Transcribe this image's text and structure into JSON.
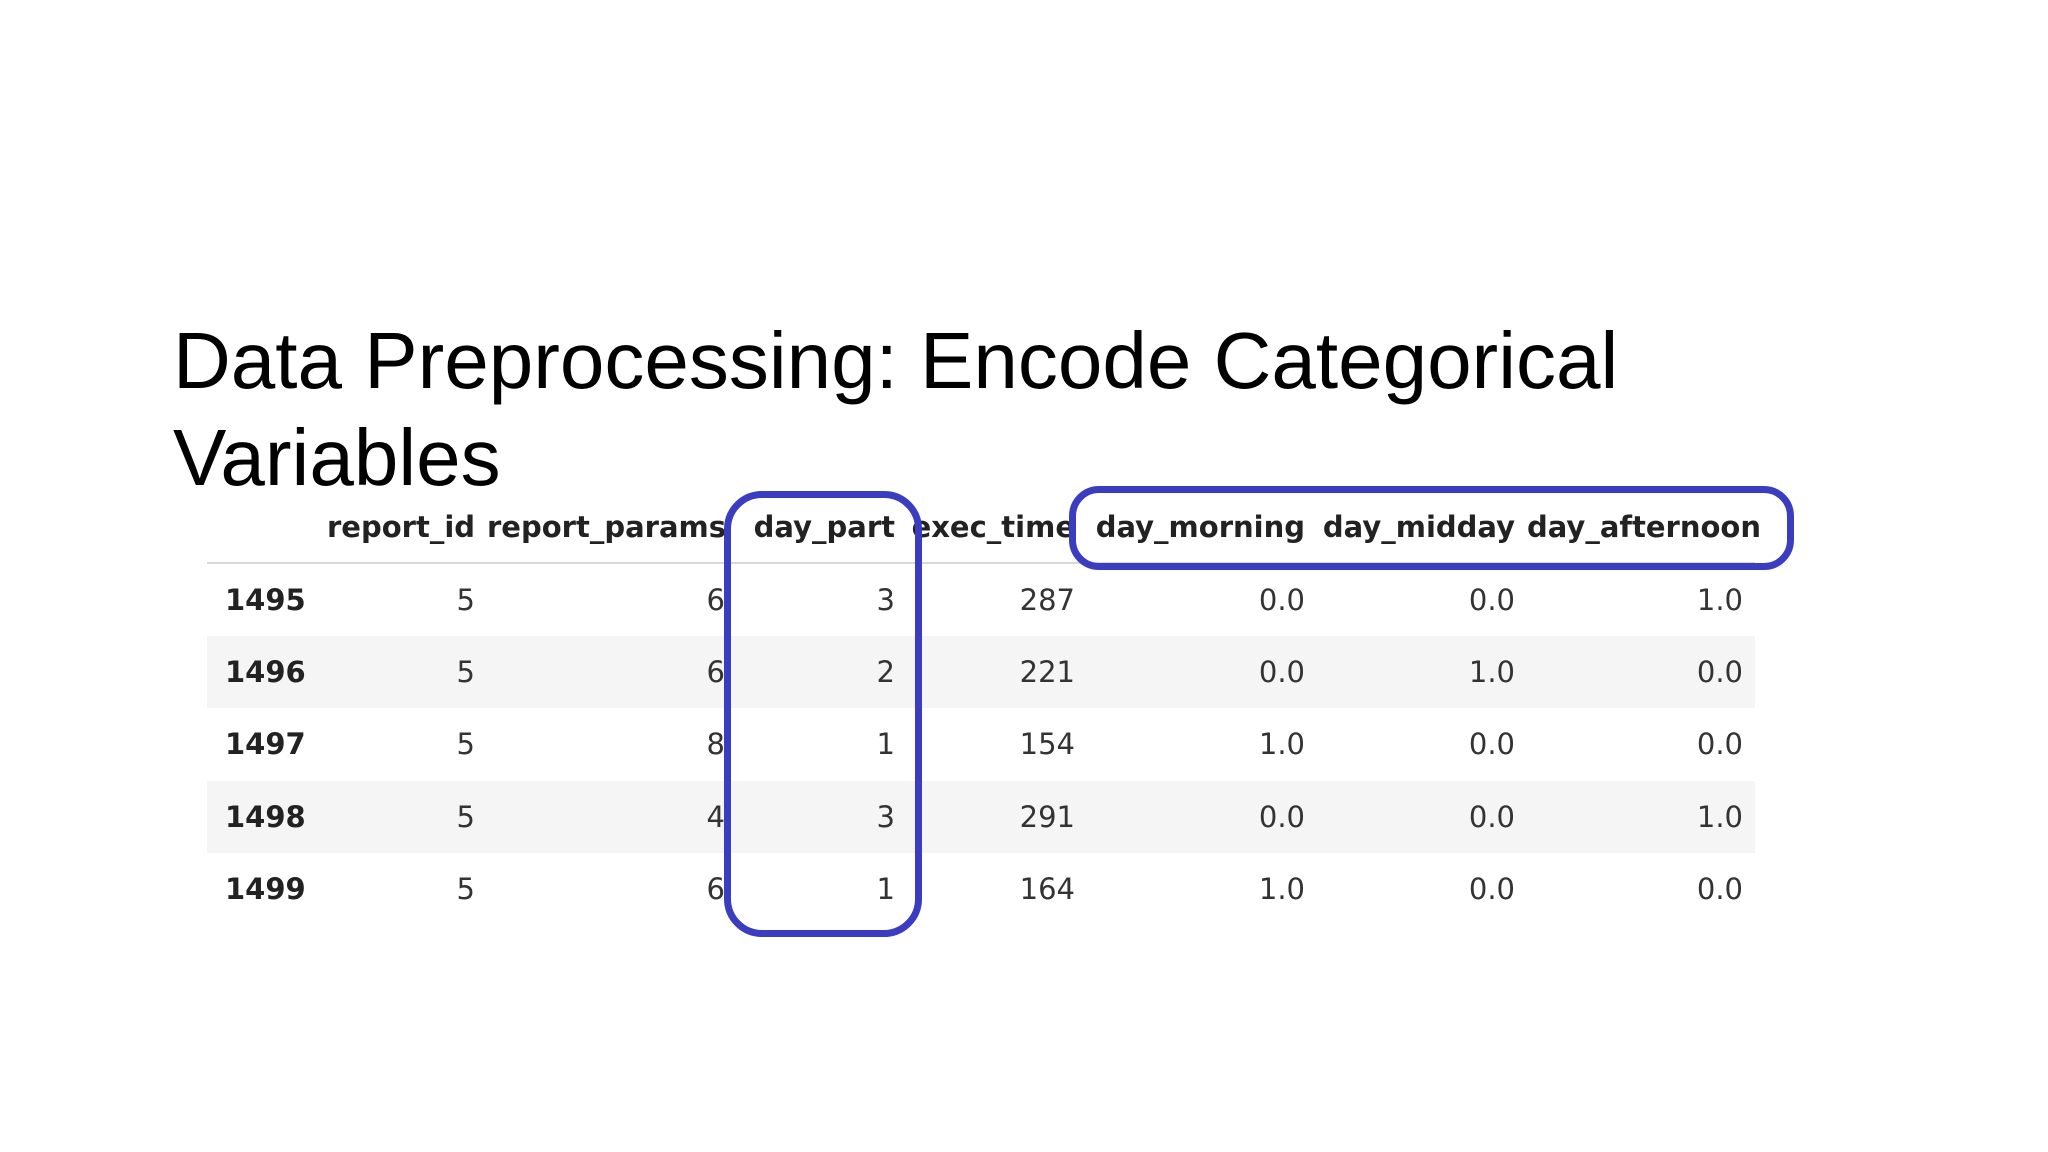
{
  "slide": {
    "title_line1": "Data Preprocessing: Encode Categorical",
    "title_line2": "Variables"
  },
  "table": {
    "columns": [
      "",
      "report_id",
      "report_params",
      "day_part",
      "exec_time",
      "day_morning",
      "day_midday",
      "day_afternoon"
    ],
    "rows": [
      {
        "index": "1495",
        "cells": [
          "5",
          "6",
          "3",
          "287",
          "0.0",
          "0.0",
          "1.0"
        ]
      },
      {
        "index": "1496",
        "cells": [
          "5",
          "6",
          "2",
          "221",
          "0.0",
          "1.0",
          "0.0"
        ]
      },
      {
        "index": "1497",
        "cells": [
          "5",
          "8",
          "1",
          "154",
          "1.0",
          "0.0",
          "0.0"
        ]
      },
      {
        "index": "1498",
        "cells": [
          "5",
          "4",
          "3",
          "291",
          "0.0",
          "0.0",
          "1.0"
        ]
      },
      {
        "index": "1499",
        "cells": [
          "5",
          "6",
          "1",
          "164",
          "1.0",
          "0.0",
          "0.0"
        ]
      }
    ]
  },
  "annotations": {
    "highlight_color": "#3a3dbf",
    "highlighted_columns": [
      "day_part",
      "day_morning",
      "day_midday",
      "day_afternoon"
    ]
  }
}
